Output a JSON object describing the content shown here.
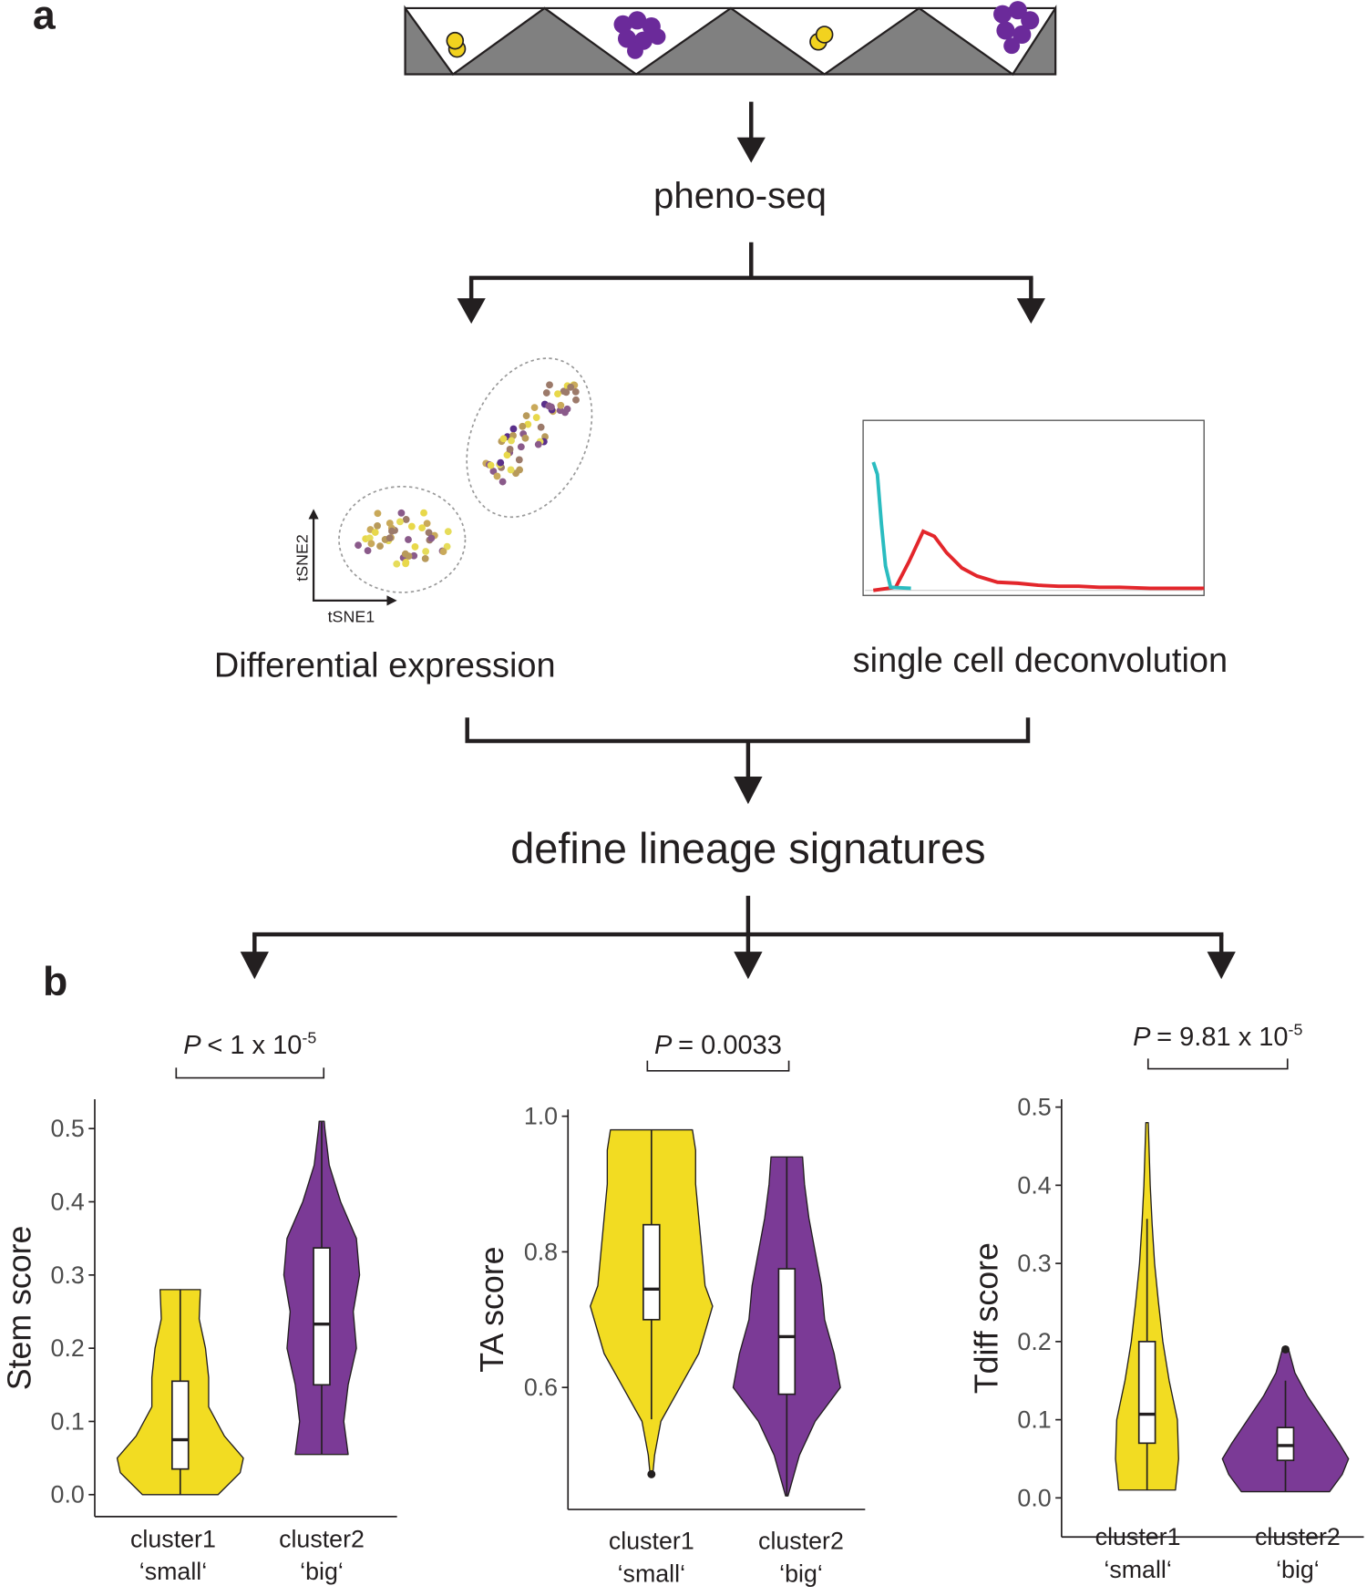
{
  "panel_a": {
    "label": "a",
    "step1": "pheno-seq",
    "tsne_x": "tSNE1",
    "tsne_y": "tSNE2",
    "left_branch": "Differential expression",
    "right_branch": "single cell deconvolution",
    "step2": "define lineage signatures"
  },
  "panel_b": {
    "label": "b"
  },
  "chart_data": [
    {
      "type": "violin",
      "ylabel": "Stem score",
      "annotation": {
        "italic": "P",
        "text": "< 1 x 10",
        "superscript": "-5"
      },
      "categories": [
        "cluster1",
        "cluster2"
      ],
      "category_sublabels": [
        "‘small‘",
        "‘big‘"
      ],
      "ylim": [
        -0.03,
        0.54
      ],
      "yticks": [
        {
          "value": 0,
          "label": "0.0"
        },
        0.1,
        0.2,
        0.3,
        0.4,
        0.5
      ],
      "series": [
        {
          "color": "#f2dc22",
          "violin": {
            "y": [
              0,
              0.03,
              0.05,
              0.08,
              0.12,
              0.16,
              0.2,
              0.24,
              0.28
            ],
            "density": [
              0.6,
              0.95,
              1.0,
              0.7,
              0.45,
              0.45,
              0.4,
              0.3,
              0.32
            ]
          },
          "box": {
            "whisker_low": 0,
            "q1": 0.035,
            "median": 0.075,
            "q3": 0.155,
            "whisker_high": 0.28
          },
          "outliers": []
        },
        {
          "color": "#7b3a96",
          "violin": {
            "y": [
              0.055,
              0.1,
              0.15,
              0.2,
              0.25,
              0.3,
              0.35,
              0.4,
              0.45,
              0.5,
              0.51
            ],
            "density": [
              0.42,
              0.35,
              0.42,
              0.55,
              0.5,
              0.6,
              0.55,
              0.3,
              0.12,
              0.05,
              0.04
            ]
          },
          "box": {
            "whisker_low": 0.055,
            "q1": 0.15,
            "median": 0.233,
            "q3": 0.337,
            "whisker_high": 0.51
          },
          "outliers": []
        }
      ]
    },
    {
      "type": "violin",
      "ylabel": "TA score",
      "annotation": {
        "italic": "P",
        "text": "= 0.0033"
      },
      "categories": [
        "cluster1",
        "cluster2"
      ],
      "category_sublabels": [
        "‘small‘",
        "‘big‘"
      ],
      "ylim": [
        0.42,
        1.01
      ],
      "yticks": [
        0.6,
        0.8,
        {
          "value": 1,
          "label": "1.0"
        }
      ],
      "series": [
        {
          "color": "#f2dc22",
          "violin": {
            "y": [
              0.47,
              0.5,
              0.55,
              0.6,
              0.65,
              0.72,
              0.75,
              0.8,
              0.85,
              0.9,
              0.95,
              0.98
            ],
            "density": [
              0.02,
              0.05,
              0.15,
              0.45,
              0.75,
              0.97,
              0.85,
              0.8,
              0.75,
              0.7,
              0.7,
              0.65
            ]
          },
          "box": {
            "whisker_low": 0.553,
            "q1": 0.7,
            "median": 0.745,
            "q3": 0.84,
            "whisker_high": 0.98
          },
          "outliers": [
            0.472
          ]
        },
        {
          "color": "#7b3a96",
          "violin": {
            "y": [
              0.44,
              0.5,
              0.55,
              0.6,
              0.65,
              0.7,
              0.75,
              0.8,
              0.85,
              0.9,
              0.94
            ],
            "density": [
              0.02,
              0.2,
              0.45,
              0.85,
              0.75,
              0.6,
              0.55,
              0.45,
              0.35,
              0.28,
              0.25
            ]
          },
          "box": {
            "whisker_low": 0.44,
            "q1": 0.59,
            "median": 0.675,
            "q3": 0.775,
            "whisker_high": 0.94
          },
          "outliers": []
        }
      ]
    },
    {
      "type": "violin",
      "ylabel": "Tdiff score",
      "annotation": {
        "italic": "P",
        "text": "= 9.81 x 10",
        "superscript": "-5"
      },
      "categories": [
        "cluster1",
        "cluster2"
      ],
      "category_sublabels": [
        "‘small‘",
        "‘big‘"
      ],
      "ylim": [
        -0.05,
        0.51
      ],
      "yticks": [
        {
          "value": 0,
          "label": "0.0"
        },
        0.1,
        0.2,
        0.3,
        0.4,
        0.5
      ],
      "series": [
        {
          "color": "#f2dc22",
          "violin": {
            "y": [
              0.01,
              0.05,
              0.1,
              0.15,
              0.2,
              0.25,
              0.3,
              0.35,
              0.4,
              0.45,
              0.48
            ],
            "density": [
              0.45,
              0.5,
              0.48,
              0.35,
              0.25,
              0.18,
              0.12,
              0.08,
              0.05,
              0.03,
              0.02
            ]
          },
          "box": {
            "whisker_low": 0.01,
            "q1": 0.07,
            "median": 0.107,
            "q3": 0.2,
            "whisker_high": 0.357
          },
          "outliers": []
        },
        {
          "color": "#7b3a96",
          "violin": {
            "y": [
              0.008,
              0.03,
              0.05,
              0.07,
              0.1,
              0.13,
              0.16,
              0.19
            ],
            "density": [
              0.7,
              0.9,
              1.0,
              0.85,
              0.6,
              0.35,
              0.15,
              0.05
            ]
          },
          "box": {
            "whisker_low": 0.008,
            "q1": 0.048,
            "median": 0.067,
            "q3": 0.09,
            "whisker_high": 0.15
          },
          "outliers": [
            0.19
          ]
        }
      ]
    }
  ]
}
